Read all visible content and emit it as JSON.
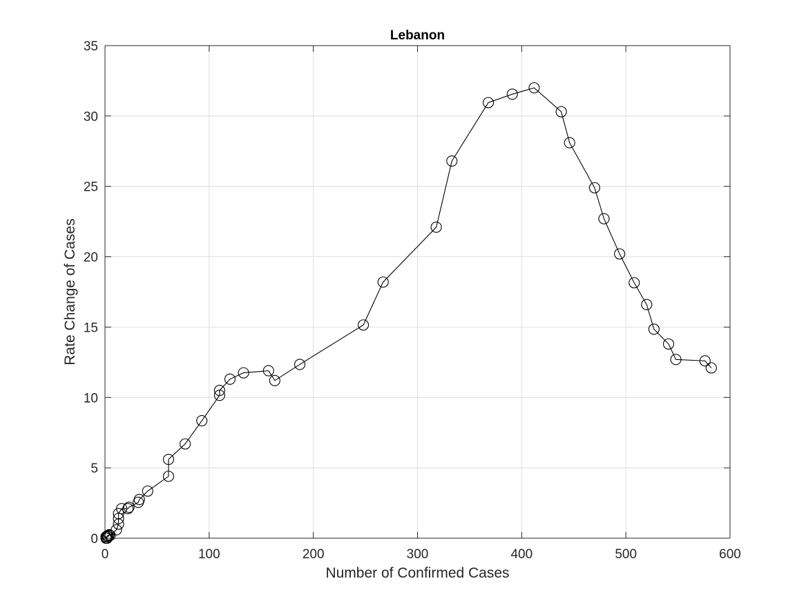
{
  "chart_data": {
    "type": "line",
    "title": "Lebanon",
    "xlabel": "Number of Confirmed Cases",
    "ylabel": "Rate Change of Cases",
    "xlim": [
      0,
      600
    ],
    "ylim": [
      0,
      35
    ],
    "xticks": [
      0,
      100,
      200,
      300,
      400,
      500,
      600
    ],
    "yticks": [
      0,
      5,
      10,
      15,
      20,
      25,
      30,
      35
    ],
    "xtick_labels": [
      "0",
      "100",
      "200",
      "300",
      "400",
      "500",
      "600"
    ],
    "ytick_labels": [
      "0",
      "5",
      "10",
      "15",
      "20",
      "25",
      "30",
      "35"
    ],
    "grid": true,
    "marker": "open-circle",
    "line_color": "#000000",
    "series": [
      {
        "x": [
          1,
          1,
          2,
          2,
          3,
          3,
          4,
          5,
          11,
          13,
          13,
          13,
          16,
          22,
          23,
          32,
          33,
          41,
          61,
          61,
          77,
          93,
          110,
          110,
          120,
          133,
          157,
          163,
          187,
          248,
          267,
          318,
          333,
          368,
          391,
          412,
          438,
          446,
          470,
          479,
          494,
          508,
          520,
          527,
          541,
          548,
          576,
          582
        ],
        "y": [
          0.0,
          0.1,
          0.0,
          0.15,
          0.2,
          0.1,
          0.25,
          0.2,
          0.6,
          1.0,
          1.4,
          1.75,
          2.1,
          2.1,
          2.2,
          2.55,
          2.75,
          3.35,
          4.4,
          5.6,
          6.7,
          8.35,
          10.15,
          10.5,
          11.3,
          11.75,
          11.9,
          11.2,
          12.35,
          15.15,
          18.2,
          22.1,
          26.8,
          30.95,
          31.55,
          32.0,
          30.3,
          28.1,
          24.9,
          22.7,
          20.2,
          18.15,
          16.6,
          14.85,
          13.8,
          12.7,
          12.6,
          12.1
        ]
      }
    ]
  }
}
